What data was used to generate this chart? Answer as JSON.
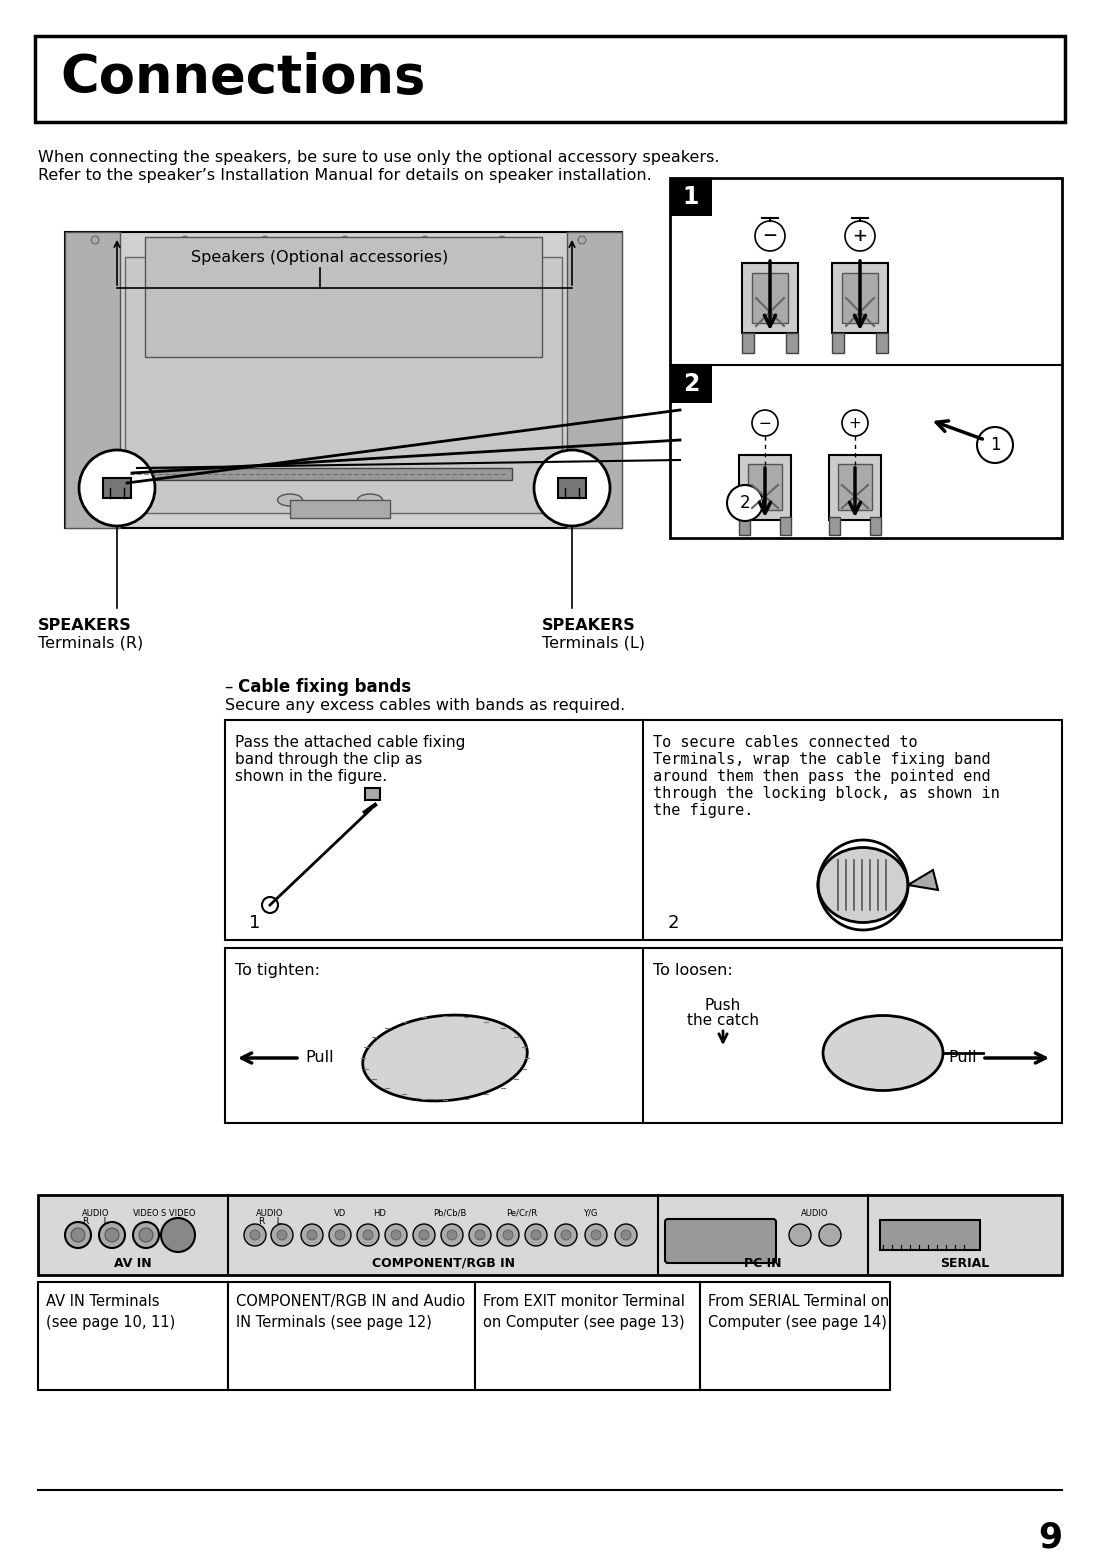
{
  "title": "Connections",
  "intro_line1": "When connecting the speakers, be sure to use only the optional accessory speakers.",
  "intro_line2": "Refer to the speaker’s Installation Manual for details on speaker installation.",
  "speakers_label": "Speakers (Optional accessories)",
  "speakers_r_label1": "SPEAKERS",
  "speakers_r_label2": "Terminals (R)",
  "speakers_l_label1": "SPEAKERS",
  "speakers_l_label2": "Terminals (L)",
  "cable_title_dash": "– Cable fixing bands",
  "cable_sub": "Secure any excess cables with bands as required.",
  "box1_l1": "Pass the attached cable fixing",
  "box1_l2": "band through the clip as",
  "box1_l3": "shown in the figure.",
  "box1_num": "1",
  "box2_l1": "To secure cables connected to",
  "box2_l2": "Terminals, wrap the cable fixing band",
  "box2_l3": "around them then pass the pointed end",
  "box2_l4": "through the locking block, as shown in",
  "box2_l5": "the figure.",
  "box2_num": "2",
  "tighten_label": "To tighten:",
  "pull_label": "Pull",
  "loosen_label": "To loosen:",
  "push_label": "Push",
  "catch_label": "the catch",
  "pull2_label": "Pull",
  "av_label": "AV IN",
  "comp_label": "COMPONENT/RGB IN",
  "pc_label": "PC IN",
  "serial_label": "SERIAL",
  "cap1": "AV IN Terminals\n(see page 10, 11)",
  "cap2": "COMPONENT/RGB IN and Audio\nIN Terminals (see page 12)",
  "cap3": "From EXIT monitor Terminal\non Computer (see page 13)",
  "cap4": "From SERIAL Terminal on\nComputer (see page 14)",
  "page_num": "9",
  "bg": "#ffffff"
}
